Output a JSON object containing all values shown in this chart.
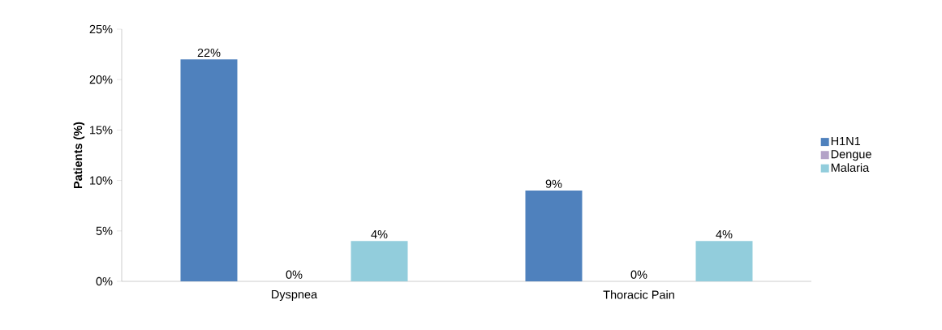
{
  "chart_data": {
    "type": "bar",
    "ylabel": "Patients (%)",
    "categories": [
      "Dyspnea",
      "Thoracic Pain"
    ],
    "series": [
      {
        "name": "H1N1",
        "color": "#4f81bd",
        "values": [
          22,
          9
        ],
        "value_labels": [
          "22%",
          "9%"
        ]
      },
      {
        "name": "Dengue",
        "color": "#b3a2c7",
        "values": [
          0,
          0
        ],
        "value_labels": [
          "0%",
          "0%"
        ]
      },
      {
        "name": "Malaria",
        "color": "#92cddc",
        "values": [
          4,
          4
        ],
        "value_labels": [
          "4%",
          "4%"
        ]
      }
    ],
    "ylim": [
      0,
      25
    ],
    "yticks": [
      {
        "value": 0,
        "label": "0%"
      },
      {
        "value": 5,
        "label": "5%"
      },
      {
        "value": 10,
        "label": "10%"
      },
      {
        "value": 15,
        "label": "15%"
      },
      {
        "value": 20,
        "label": "20%"
      },
      {
        "value": 25,
        "label": "25%"
      }
    ],
    "grid": false,
    "legend": "right"
  }
}
